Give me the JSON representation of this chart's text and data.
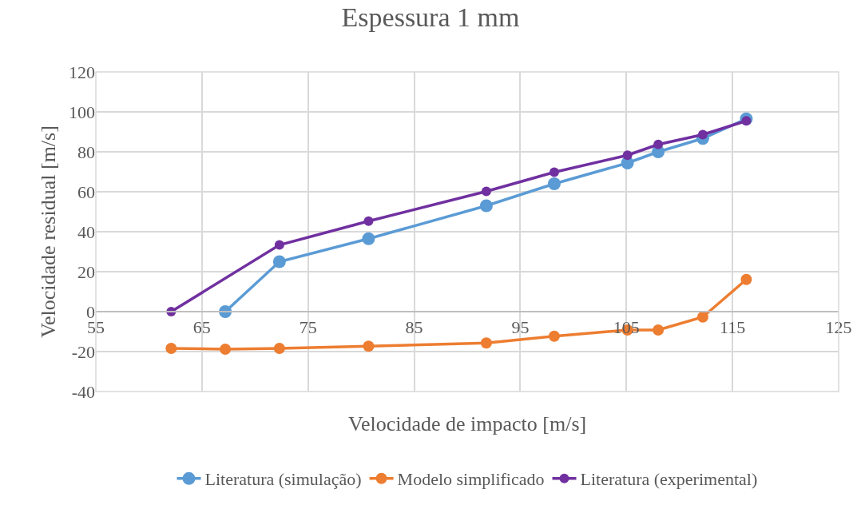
{
  "chart_data": {
    "type": "line",
    "title": "Espessura 1 mm",
    "xlabel": "Velocidade de impacto [m/s]",
    "ylabel": "Velocidade residual [m/s]",
    "xlim": [
      55,
      125
    ],
    "xticks": [
      55,
      65,
      75,
      85,
      95,
      105,
      115,
      125
    ],
    "ylim": [
      -40,
      120
    ],
    "yticks": [
      -40,
      -20,
      0,
      20,
      40,
      60,
      80,
      100,
      120
    ],
    "grid": true,
    "legend": "bottom",
    "marker": "circle",
    "line_style": "solid",
    "series": [
      {
        "name": "Literatura (simulação)",
        "color": "#5b9bd5",
        "x": [
          67.2,
          72.3,
          80.7,
          91.8,
          98.2,
          105.1,
          108,
          112.2,
          116.3
        ],
        "values": [
          0,
          25,
          36.5,
          53,
          64,
          74.4,
          80,
          86.7,
          96.5
        ]
      },
      {
        "name": "Modelo simplificado",
        "color": "#ed7d31",
        "x": [
          62.1,
          67.2,
          72.3,
          80.7,
          91.8,
          98.2,
          105.1,
          108,
          112.2,
          116.3
        ],
        "values": [
          -18.4,
          -18.8,
          -18.4,
          -17.3,
          -15.7,
          -12.3,
          -9.2,
          -9.2,
          -2.7,
          16.1
        ]
      },
      {
        "name": "Literatura (experimental)",
        "color": "#7030a0",
        "x": [
          62.1,
          72.3,
          80.7,
          91.8,
          98.2,
          105.1,
          108,
          112.2,
          116.3
        ],
        "values": [
          0,
          33.4,
          45.3,
          60.2,
          69.8,
          78.3,
          83.7,
          88.6,
          95.5
        ]
      }
    ]
  }
}
